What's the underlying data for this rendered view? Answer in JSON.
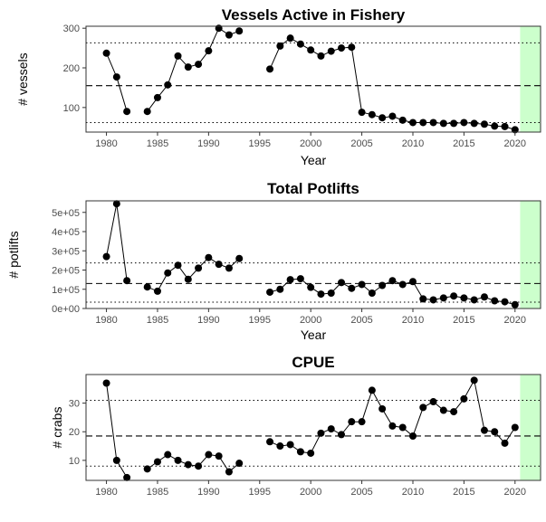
{
  "chart_data": [
    {
      "type": "line",
      "title": "Vessels Active in Fishery",
      "xlabel": "Year",
      "ylabel": "# vessels",
      "xlim": [
        1978,
        2022.5
      ],
      "ylim": [
        38,
        305
      ],
      "xticks": [
        1980,
        1985,
        1990,
        1995,
        2000,
        2005,
        2010,
        2015,
        2020
      ],
      "yticks": [
        100,
        200,
        300
      ],
      "ytick_labels": [
        "100",
        "200",
        "300"
      ],
      "hlines": {
        "mean": 155,
        "upper": 263,
        "lower": 62
      },
      "highlight_range": [
        2020.5,
        2022.5
      ],
      "highlight_color": "#ccffcc",
      "segments": [
        {
          "x": [
            1980,
            1981,
            1982
          ],
          "y": [
            237,
            177,
            90
          ]
        },
        {
          "x": [
            1984,
            1985,
            1986,
            1987,
            1988,
            1989,
            1990,
            1991,
            1992,
            1993
          ],
          "y": [
            90,
            125,
            157,
            230,
            202,
            209,
            243,
            300,
            283,
            293
          ]
        },
        {
          "x": [
            1996,
            1997,
            1998,
            1999,
            2000,
            2001,
            2002,
            2003,
            2004,
            2005,
            2006,
            2007,
            2008,
            2009,
            2010,
            2011,
            2012,
            2013,
            2014,
            2015,
            2016,
            2017,
            2018,
            2019,
            2020
          ],
          "y": [
            197,
            255,
            275,
            260,
            245,
            230,
            242,
            250,
            252,
            88,
            82,
            74,
            78,
            68,
            62,
            62,
            62,
            60,
            60,
            62,
            60,
            58,
            53,
            52,
            44
          ]
        }
      ]
    },
    {
      "type": "line",
      "title": "Total Potlifts",
      "xlabel": "Year",
      "ylabel": "# potlifts",
      "xlim": [
        1978,
        2022.5
      ],
      "ylim": [
        0,
        560000
      ],
      "xticks": [
        1980,
        1985,
        1990,
        1995,
        2000,
        2005,
        2010,
        2015,
        2020
      ],
      "yticks": [
        0,
        100000,
        200000,
        300000,
        400000,
        500000
      ],
      "ytick_labels": [
        "0e+00",
        "1e+05",
        "2e+05",
        "3e+05",
        "4e+05",
        "5e+05"
      ],
      "hlines": {
        "mean": 130000,
        "upper": 237000,
        "lower": 33000
      },
      "highlight_range": [
        2020.5,
        2022.5
      ],
      "highlight_color": "#ccffcc",
      "segments": [
        {
          "x": [
            1980,
            1981,
            1982
          ],
          "y": [
            270000,
            545000,
            145000
          ]
        },
        {
          "x": [
            1984,
            1985,
            1986,
            1987,
            1988,
            1989,
            1990,
            1991,
            1992,
            1993
          ],
          "y": [
            112000,
            90000,
            185000,
            225000,
            152000,
            210000,
            265000,
            230000,
            210000,
            260000
          ]
        },
        {
          "x": [
            1996,
            1997,
            1998,
            1999,
            2000,
            2001,
            2002,
            2003,
            2004,
            2005,
            2006,
            2007,
            2008,
            2009,
            2010,
            2011,
            2012,
            2013,
            2014,
            2015,
            2016,
            2017,
            2018,
            2019,
            2020
          ],
          "y": [
            85000,
            100000,
            150000,
            155000,
            110000,
            75000,
            80000,
            135000,
            105000,
            125000,
            80000,
            120000,
            145000,
            125000,
            140000,
            50000,
            45000,
            55000,
            65000,
            55000,
            45000,
            60000,
            40000,
            35000,
            20000
          ]
        }
      ]
    },
    {
      "type": "line",
      "title": "CPUE",
      "xlabel": "",
      "ylabel": "# crabs",
      "xlim": [
        1978,
        2022.5
      ],
      "ylim": [
        3,
        40
      ],
      "xticks": [
        1980,
        1985,
        1990,
        1995,
        2000,
        2005,
        2010,
        2015,
        2020
      ],
      "yticks": [
        10,
        20,
        30
      ],
      "ytick_labels": [
        "10",
        "20",
        "30"
      ],
      "hlines": {
        "mean": 18.5,
        "upper": 31,
        "lower": 8
      },
      "highlight_range": [
        2020.5,
        2022.5
      ],
      "highlight_color": "#ccffcc",
      "segments": [
        {
          "x": [
            1980,
            1981,
            1982
          ],
          "y": [
            37,
            10,
            4
          ]
        },
        {
          "x": [
            1984,
            1985,
            1986,
            1987,
            1988,
            1989,
            1990,
            1991,
            1992,
            1993
          ],
          "y": [
            7,
            9.5,
            12,
            10,
            8.5,
            8,
            12,
            11.5,
            6,
            9
          ]
        },
        {
          "x": [
            1996,
            1997,
            1998,
            1999,
            2000,
            2001,
            2002,
            2003,
            2004,
            2005,
            2006,
            2007,
            2008,
            2009,
            2010,
            2011,
            2012,
            2013,
            2014,
            2015,
            2016,
            2017,
            2018,
            2019,
            2020
          ],
          "y": [
            16.5,
            15,
            15.5,
            13,
            12.5,
            19.5,
            21,
            19,
            23.5,
            23.5,
            34.5,
            28,
            22,
            21.5,
            18.5,
            28.5,
            30.5,
            27.5,
            27,
            31.5,
            38,
            20.5,
            20,
            16,
            21.5
          ]
        }
      ]
    }
  ]
}
